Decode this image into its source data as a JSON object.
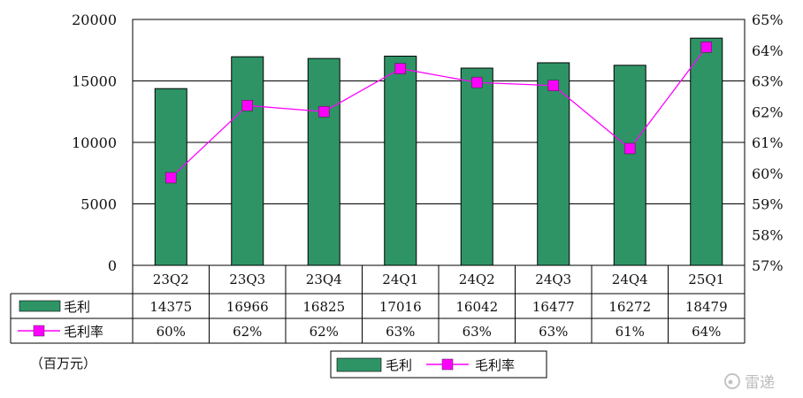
{
  "chart_data": {
    "type": "bar",
    "categories": [
      "23Q2",
      "23Q3",
      "23Q4",
      "24Q1",
      "24Q2",
      "24Q3",
      "24Q4",
      "25Q1"
    ],
    "series": [
      {
        "name": "毛利",
        "type": "bar",
        "axis": "left",
        "values": [
          14375,
          16966,
          16825,
          17016,
          16042,
          16477,
          16272,
          18479
        ],
        "color": "#2e9466"
      },
      {
        "name": "毛利率",
        "type": "line",
        "axis": "right",
        "values": [
          59.85,
          62.2,
          62.0,
          63.4,
          62.95,
          62.85,
          60.8,
          64.1
        ],
        "table_labels": [
          "60%",
          "62%",
          "62%",
          "63%",
          "63%",
          "63%",
          "61%",
          "64%"
        ],
        "color": "#ff00ff"
      }
    ],
    "table_values": [
      "14375",
      "16966",
      "16825",
      "17016",
      "16042",
      "16477",
      "16272",
      "18479"
    ],
    "y_left": {
      "ylim": [
        0,
        20000
      ],
      "ticks": [
        "0",
        "5000",
        "10000",
        "15000",
        "20000"
      ]
    },
    "y_right": {
      "ylim": [
        57,
        65
      ],
      "ticks": [
        "57%",
        "58%",
        "59%",
        "60%",
        "61%",
        "62%",
        "63%",
        "64%",
        "65%"
      ]
    },
    "unit_label": "（百万元）",
    "legend": {
      "position": "bottom-center",
      "items": [
        "毛利",
        "毛利率"
      ]
    },
    "grid": true
  },
  "watermark": "雷递"
}
